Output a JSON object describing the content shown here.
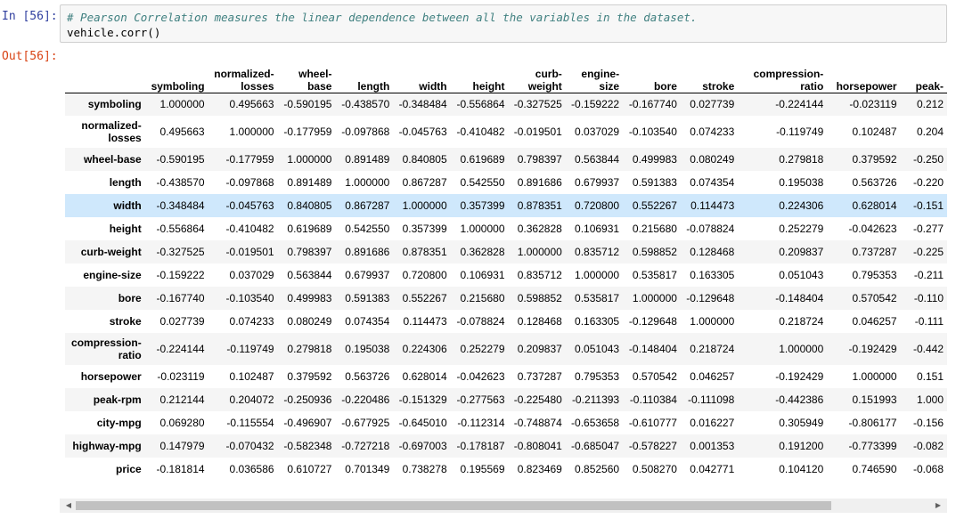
{
  "cell": {
    "in_prompt": "In [56]:",
    "out_prompt": "Out[56]:",
    "code_comment": "# Pearson Correlation measures the linear dependence between all the variables in the dataset.",
    "code_line": "vehicle.corr()"
  },
  "table": {
    "columns": [
      [
        "symboling"
      ],
      [
        "normalized-",
        "losses"
      ],
      [
        "wheel-",
        "base"
      ],
      [
        "length"
      ],
      [
        "width"
      ],
      [
        "height"
      ],
      [
        "curb-",
        "weight"
      ],
      [
        "engine-",
        "size"
      ],
      [
        "bore"
      ],
      [
        "stroke"
      ],
      [
        "compression-",
        "ratio"
      ],
      [
        "horsepower"
      ],
      [
        "peak-"
      ]
    ],
    "highlighted_row": "width",
    "rows": [
      {
        "label": [
          "symboling"
        ],
        "values": [
          "1.000000",
          "0.495663",
          "-0.590195",
          "-0.438570",
          "-0.348484",
          "-0.556864",
          "-0.327525",
          "-0.159222",
          "-0.167740",
          "0.027739",
          "-0.224144",
          "-0.023119",
          "0.212"
        ]
      },
      {
        "label": [
          "normalized-",
          "losses"
        ],
        "values": [
          "0.495663",
          "1.000000",
          "-0.177959",
          "-0.097868",
          "-0.045763",
          "-0.410482",
          "-0.019501",
          "0.037029",
          "-0.103540",
          "0.074233",
          "-0.119749",
          "0.102487",
          "0.204"
        ]
      },
      {
        "label": [
          "wheel-base"
        ],
        "values": [
          "-0.590195",
          "-0.177959",
          "1.000000",
          "0.891489",
          "0.840805",
          "0.619689",
          "0.798397",
          "0.563844",
          "0.499983",
          "0.080249",
          "0.279818",
          "0.379592",
          "-0.250"
        ]
      },
      {
        "label": [
          "length"
        ],
        "values": [
          "-0.438570",
          "-0.097868",
          "0.891489",
          "1.000000",
          "0.867287",
          "0.542550",
          "0.891686",
          "0.679937",
          "0.591383",
          "0.074354",
          "0.195038",
          "0.563726",
          "-0.220"
        ]
      },
      {
        "label": [
          "width"
        ],
        "values": [
          "-0.348484",
          "-0.045763",
          "0.840805",
          "0.867287",
          "1.000000",
          "0.357399",
          "0.878351",
          "0.720800",
          "0.552267",
          "0.114473",
          "0.224306",
          "0.628014",
          "-0.151"
        ]
      },
      {
        "label": [
          "height"
        ],
        "values": [
          "-0.556864",
          "-0.410482",
          "0.619689",
          "0.542550",
          "0.357399",
          "1.000000",
          "0.362828",
          "0.106931",
          "0.215680",
          "-0.078824",
          "0.252279",
          "-0.042623",
          "-0.277"
        ]
      },
      {
        "label": [
          "curb-weight"
        ],
        "values": [
          "-0.327525",
          "-0.019501",
          "0.798397",
          "0.891686",
          "0.878351",
          "0.362828",
          "1.000000",
          "0.835712",
          "0.598852",
          "0.128468",
          "0.209837",
          "0.737287",
          "-0.225"
        ]
      },
      {
        "label": [
          "engine-size"
        ],
        "values": [
          "-0.159222",
          "0.037029",
          "0.563844",
          "0.679937",
          "0.720800",
          "0.106931",
          "0.835712",
          "1.000000",
          "0.535817",
          "0.163305",
          "0.051043",
          "0.795353",
          "-0.211"
        ]
      },
      {
        "label": [
          "bore"
        ],
        "values": [
          "-0.167740",
          "-0.103540",
          "0.499983",
          "0.591383",
          "0.552267",
          "0.215680",
          "0.598852",
          "0.535817",
          "1.000000",
          "-0.129648",
          "-0.148404",
          "0.570542",
          "-0.110"
        ]
      },
      {
        "label": [
          "stroke"
        ],
        "values": [
          "0.027739",
          "0.074233",
          "0.080249",
          "0.074354",
          "0.114473",
          "-0.078824",
          "0.128468",
          "0.163305",
          "-0.129648",
          "1.000000",
          "0.218724",
          "0.046257",
          "-0.111"
        ]
      },
      {
        "label": [
          "compression-",
          "ratio"
        ],
        "values": [
          "-0.224144",
          "-0.119749",
          "0.279818",
          "0.195038",
          "0.224306",
          "0.252279",
          "0.209837",
          "0.051043",
          "-0.148404",
          "0.218724",
          "1.000000",
          "-0.192429",
          "-0.442"
        ]
      },
      {
        "label": [
          "horsepower"
        ],
        "values": [
          "-0.023119",
          "0.102487",
          "0.379592",
          "0.563726",
          "0.628014",
          "-0.042623",
          "0.737287",
          "0.795353",
          "0.570542",
          "0.046257",
          "-0.192429",
          "1.000000",
          "0.151"
        ]
      },
      {
        "label": [
          "peak-rpm"
        ],
        "values": [
          "0.212144",
          "0.204072",
          "-0.250936",
          "-0.220486",
          "-0.151329",
          "-0.277563",
          "-0.225480",
          "-0.211393",
          "-0.110384",
          "-0.111098",
          "-0.442386",
          "0.151993",
          "1.000"
        ]
      },
      {
        "label": [
          "city-mpg"
        ],
        "values": [
          "0.069280",
          "-0.115554",
          "-0.496907",
          "-0.677925",
          "-0.645010",
          "-0.112314",
          "-0.748874",
          "-0.653658",
          "-0.610777",
          "0.016227",
          "0.305949",
          "-0.806177",
          "-0.156"
        ]
      },
      {
        "label": [
          "highway-mpg"
        ],
        "values": [
          "0.147979",
          "-0.070432",
          "-0.582348",
          "-0.727218",
          "-0.697003",
          "-0.178187",
          "-0.808041",
          "-0.685047",
          "-0.578227",
          "0.001353",
          "0.191200",
          "-0.773399",
          "-0.082"
        ]
      },
      {
        "label": [
          "price"
        ],
        "values": [
          "-0.181814",
          "0.036586",
          "0.610727",
          "0.701349",
          "0.738278",
          "0.195569",
          "0.823469",
          "0.852560",
          "0.508270",
          "0.042771",
          "0.104120",
          "0.746590",
          "-0.068"
        ]
      }
    ]
  },
  "scrollbar": {
    "left_arrow": "◀",
    "right_arrow": "▶"
  }
}
